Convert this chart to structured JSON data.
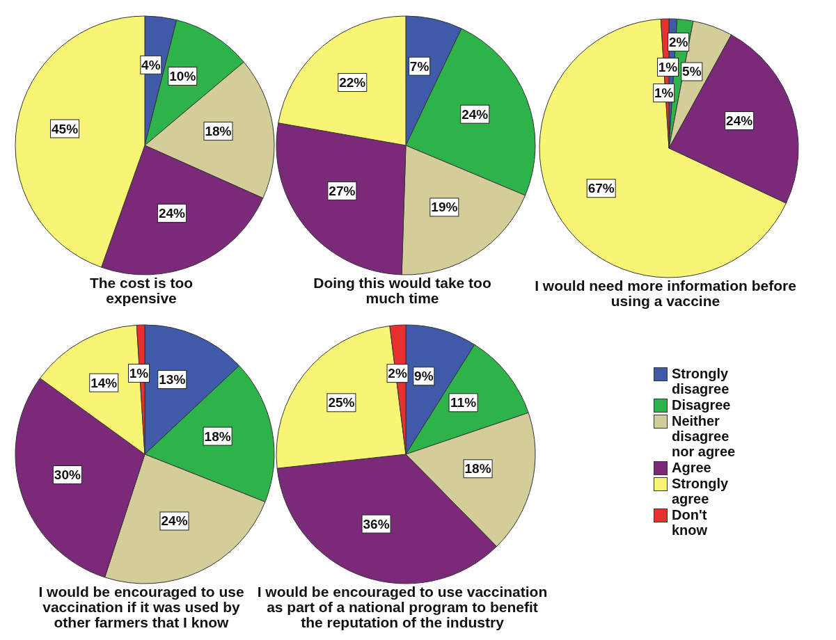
{
  "chart_data": [
    {
      "type": "pie",
      "title": "The cost is too expensive",
      "categories": [
        null,
        null,
        null,
        null,
        null
      ],
      "values": [
        4,
        10,
        18,
        24,
        45
      ],
      "colors": [
        "#3f5aa9",
        "#2db34a",
        "#d3cd9a",
        "#7b2a7a",
        "#f8f574"
      ],
      "value_labels": [
        "4%",
        "10%",
        "18%",
        "24%",
        "45%"
      ]
    },
    {
      "type": "pie",
      "title": "Doing this would take too much time",
      "categories": [
        null,
        null,
        null,
        null,
        null
      ],
      "values": [
        7,
        24,
        19,
        27,
        22
      ],
      "colors": [
        "#3f5aa9",
        "#2db34a",
        "#d3cd9a",
        "#7b2a7a",
        "#f8f574"
      ],
      "value_labels": [
        "7%",
        "24%",
        "19%",
        "27%",
        "22%"
      ]
    },
    {
      "type": "pie",
      "title": "I would need more information before using a vaccine",
      "categories": [
        null,
        null,
        null,
        null,
        null,
        null
      ],
      "values": [
        1,
        2,
        5,
        24,
        67,
        1
      ],
      "colors": [
        "#3f5aa9",
        "#2db34a",
        "#d3cd9a",
        "#7b2a7a",
        "#f8f574",
        "#e8312f"
      ],
      "value_labels": [
        "1%",
        "2%",
        "5%",
        "24%",
        "67%",
        "1%"
      ]
    },
    {
      "type": "pie",
      "title": "I would be encouraged to use vaccination if it was used by other farmers that I know",
      "categories": [
        null,
        null,
        null,
        null,
        null,
        null
      ],
      "values": [
        13,
        18,
        24,
        30,
        14,
        1
      ],
      "colors": [
        "#3f5aa9",
        "#2db34a",
        "#d3cd9a",
        "#7b2a7a",
        "#f8f574",
        "#e8312f"
      ],
      "value_labels": [
        "13%",
        "18%",
        "24%",
        "30%",
        "14%",
        "1%"
      ]
    },
    {
      "type": "pie",
      "title": "I would be encouraged to use vaccination as part of a national program to benefit the reputation of the industry",
      "categories": [
        "Strongly disagree",
        "Disagree",
        "Neither disagree nor agree",
        "Agree",
        "Strongly agree",
        "Don't know"
      ],
      "values": [
        9,
        11,
        18,
        36,
        25,
        2
      ],
      "colors": [
        "#3f5aa9",
        "#2db34a",
        "#d3cd9a",
        "#7b2a7a",
        "#f8f574",
        "#e8312f"
      ],
      "value_labels": [
        "9%",
        "11%",
        "18%",
        "36%",
        "25%",
        "2%"
      ],
      "legend": "right"
    }
  ]
}
